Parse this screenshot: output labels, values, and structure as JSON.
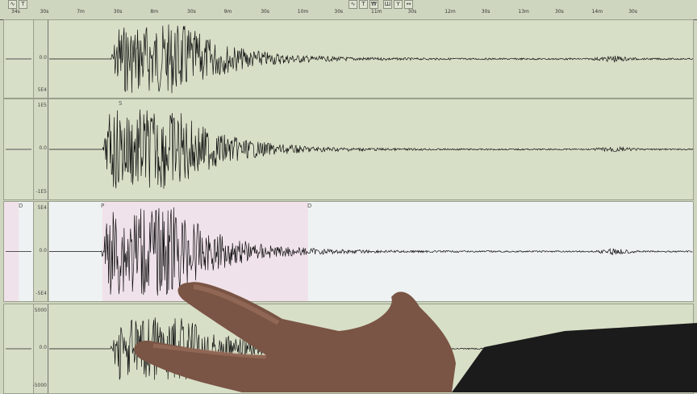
{
  "toolbar_left": [
    "∿",
    "T"
  ],
  "toolbar_mid": [
    "∿",
    "T",
    "₩",
    "Ш",
    "Y",
    "↔"
  ],
  "time_axis": [
    "34s",
    "30s",
    "7m",
    "30s",
    "8m",
    "30s",
    "9m",
    "30s",
    "10m",
    "30s",
    "11m",
    "30s",
    "12m",
    "30s",
    "13m",
    "30s",
    "14m",
    "30s"
  ],
  "panels": [
    {
      "top_label": "",
      "zero_label": "0.0",
      "bottom_label": "5E4",
      "phase": ""
    },
    {
      "top_label": "1E5",
      "zero_label": "0.0",
      "bottom_label": "-1E5",
      "phase": "S"
    },
    {
      "top_label": "5E4",
      "zero_label": "0.0",
      "bottom_label": "-5E4",
      "phase": "P",
      "phase2": "D",
      "mini_phase": "D"
    },
    {
      "top_label": "5000",
      "zero_label": "0.0",
      "bottom_label": "-5000",
      "phase": ""
    }
  ],
  "colors": {
    "background": "#d8dfc7",
    "selected": "#f0e2ea",
    "trace": "#111111"
  }
}
